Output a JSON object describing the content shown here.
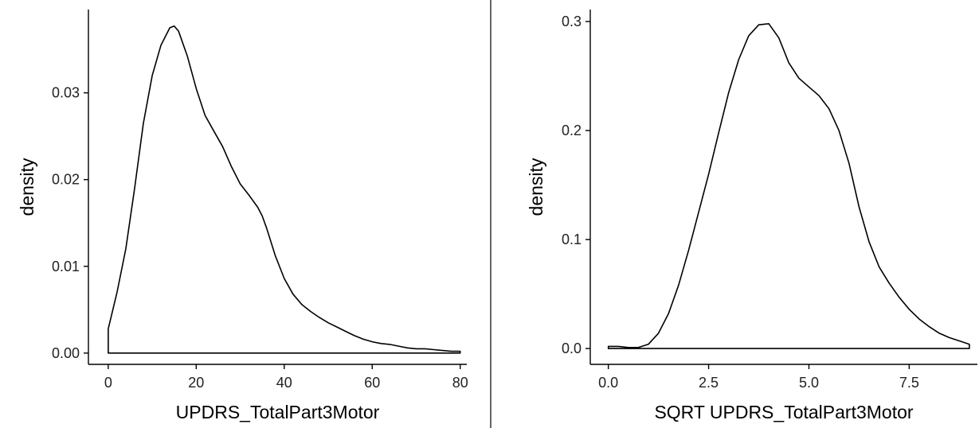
{
  "colors": {
    "background": "#ffffff",
    "line": "#000000",
    "axis": "#000000",
    "tick_text": "#222222",
    "divider": "#000000"
  },
  "chart_data": [
    {
      "type": "area",
      "title": "",
      "xlabel": "UPDRS_TotalPart3Motor",
      "ylabel": "density",
      "xlim": [
        -4.5,
        81.5
      ],
      "ylim": [
        -0.0013,
        0.0396
      ],
      "xticks": [
        0,
        20,
        40,
        60,
        80
      ],
      "xtick_labels": [
        "0",
        "20",
        "40",
        "60",
        "80"
      ],
      "yticks": [
        0.0,
        0.01,
        0.02,
        0.03
      ],
      "ytick_labels": [
        "0.00",
        "0.01",
        "0.02",
        "0.03"
      ],
      "grid": false,
      "legend": "none",
      "series": [
        {
          "x": [
            0,
            2,
            4,
            6,
            8,
            10,
            12,
            14,
            15,
            16,
            18,
            20,
            22,
            24,
            26,
            28,
            30,
            32,
            34,
            35,
            36,
            38,
            40,
            42,
            44,
            46,
            48,
            50,
            52,
            54,
            56,
            58,
            60,
            62,
            64,
            66,
            68,
            70,
            72,
            74,
            76,
            78,
            80
          ],
          "y": [
            0.0028,
            0.007,
            0.012,
            0.019,
            0.0265,
            0.032,
            0.0355,
            0.0375,
            0.0377,
            0.0371,
            0.0342,
            0.0305,
            0.0274,
            0.0256,
            0.0238,
            0.0215,
            0.0195,
            0.0182,
            0.0168,
            0.0158,
            0.0144,
            0.0112,
            0.0086,
            0.0068,
            0.0056,
            0.0048,
            0.0041,
            0.0035,
            0.003,
            0.0025,
            0.002,
            0.0016,
            0.0013,
            0.0011,
            0.001,
            0.0008,
            0.0006,
            0.0005,
            0.0005,
            0.0004,
            0.0003,
            0.0002,
            0.0002
          ]
        }
      ]
    },
    {
      "type": "area",
      "title": "",
      "xlabel": "SQRT UPDRS_TotalPart3Motor",
      "ylabel": "density",
      "xlim": [
        -0.45,
        9.2
      ],
      "ylim": [
        -0.0145,
        0.311
      ],
      "xticks": [
        0.0,
        2.5,
        5.0,
        7.5
      ],
      "xtick_labels": [
        "0.0",
        "2.5",
        "5.0",
        "7.5"
      ],
      "yticks": [
        0.0,
        0.1,
        0.2,
        0.3
      ],
      "ytick_labels": [
        "0.0",
        "0.1",
        "0.2",
        "0.3"
      ],
      "grid": false,
      "legend": "none",
      "series": [
        {
          "x": [
            0.0,
            0.25,
            0.5,
            0.75,
            1.0,
            1.25,
            1.5,
            1.75,
            2.0,
            2.25,
            2.5,
            2.75,
            3.0,
            3.25,
            3.5,
            3.75,
            4.0,
            4.25,
            4.5,
            4.75,
            5.0,
            5.25,
            5.5,
            5.75,
            6.0,
            6.25,
            6.5,
            6.75,
            7.0,
            7.25,
            7.5,
            7.75,
            8.0,
            8.25,
            8.5,
            8.75,
            9.0
          ],
          "y": [
            0.002,
            0.002,
            0.001,
            0.001,
            0.004,
            0.014,
            0.032,
            0.058,
            0.09,
            0.125,
            0.16,
            0.198,
            0.235,
            0.265,
            0.287,
            0.297,
            0.298,
            0.285,
            0.262,
            0.248,
            0.24,
            0.232,
            0.22,
            0.2,
            0.17,
            0.13,
            0.098,
            0.075,
            0.06,
            0.047,
            0.036,
            0.027,
            0.02,
            0.014,
            0.01,
            0.007,
            0.004
          ]
        }
      ]
    }
  ]
}
